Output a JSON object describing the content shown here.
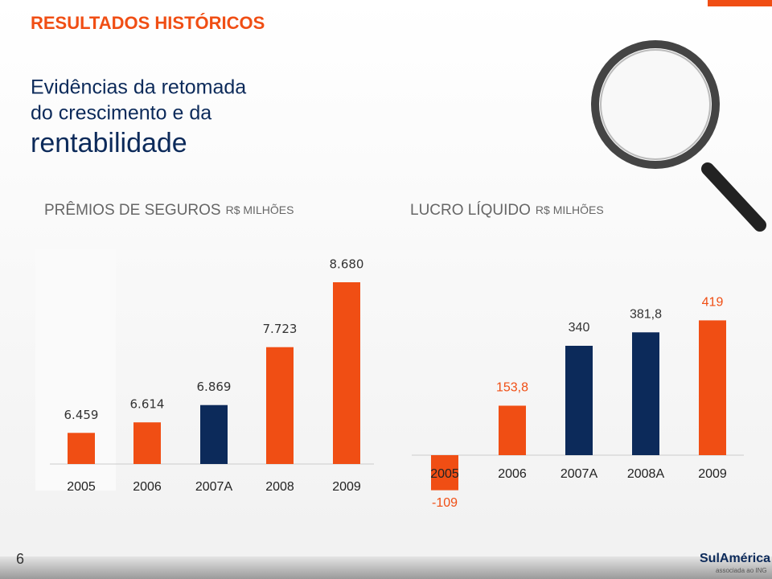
{
  "header": {
    "section": "RESULTADOS HISTÓRICOS",
    "headline": [
      "Evidências da retomada",
      "do crescimento e da",
      "rentabilidade"
    ]
  },
  "page_number": "6",
  "logo": {
    "name": "SulAmérica",
    "tagline": "associada ao ING"
  },
  "chart_data": [
    {
      "type": "bar",
      "title": "PRÊMIOS DE SEGUROS",
      "subtitle": "R$ MILHÕES",
      "categories": [
        "2005",
        "2006",
        "2007A",
        "2008",
        "2009"
      ],
      "values": [
        6459,
        6614,
        6869,
        7723,
        8680
      ],
      "value_labels": [
        "6.459",
        "6.614",
        "6.869",
        "7.723",
        "8.680"
      ],
      "colors": [
        "#f04e14",
        "#f04e14",
        "#0c2a5a",
        "#f04e14",
        "#f04e14"
      ],
      "ylim": [
        6000,
        9000
      ]
    },
    {
      "type": "bar",
      "title": "LUCRO LÍQUIDO",
      "subtitle": "R$ MILHÕES",
      "categories": [
        "2005",
        "2006",
        "2007A",
        "2008A",
        "2009"
      ],
      "values": [
        -109,
        153.8,
        340,
        381.8,
        419
      ],
      "value_labels": [
        "-109",
        "153,8",
        "340",
        "381,8",
        "419"
      ],
      "colors": [
        "#f04e14",
        "#f04e14",
        "#0c2a5a",
        "#0c2a5a",
        "#f04e14"
      ],
      "ylim": [
        -150,
        450
      ]
    }
  ]
}
